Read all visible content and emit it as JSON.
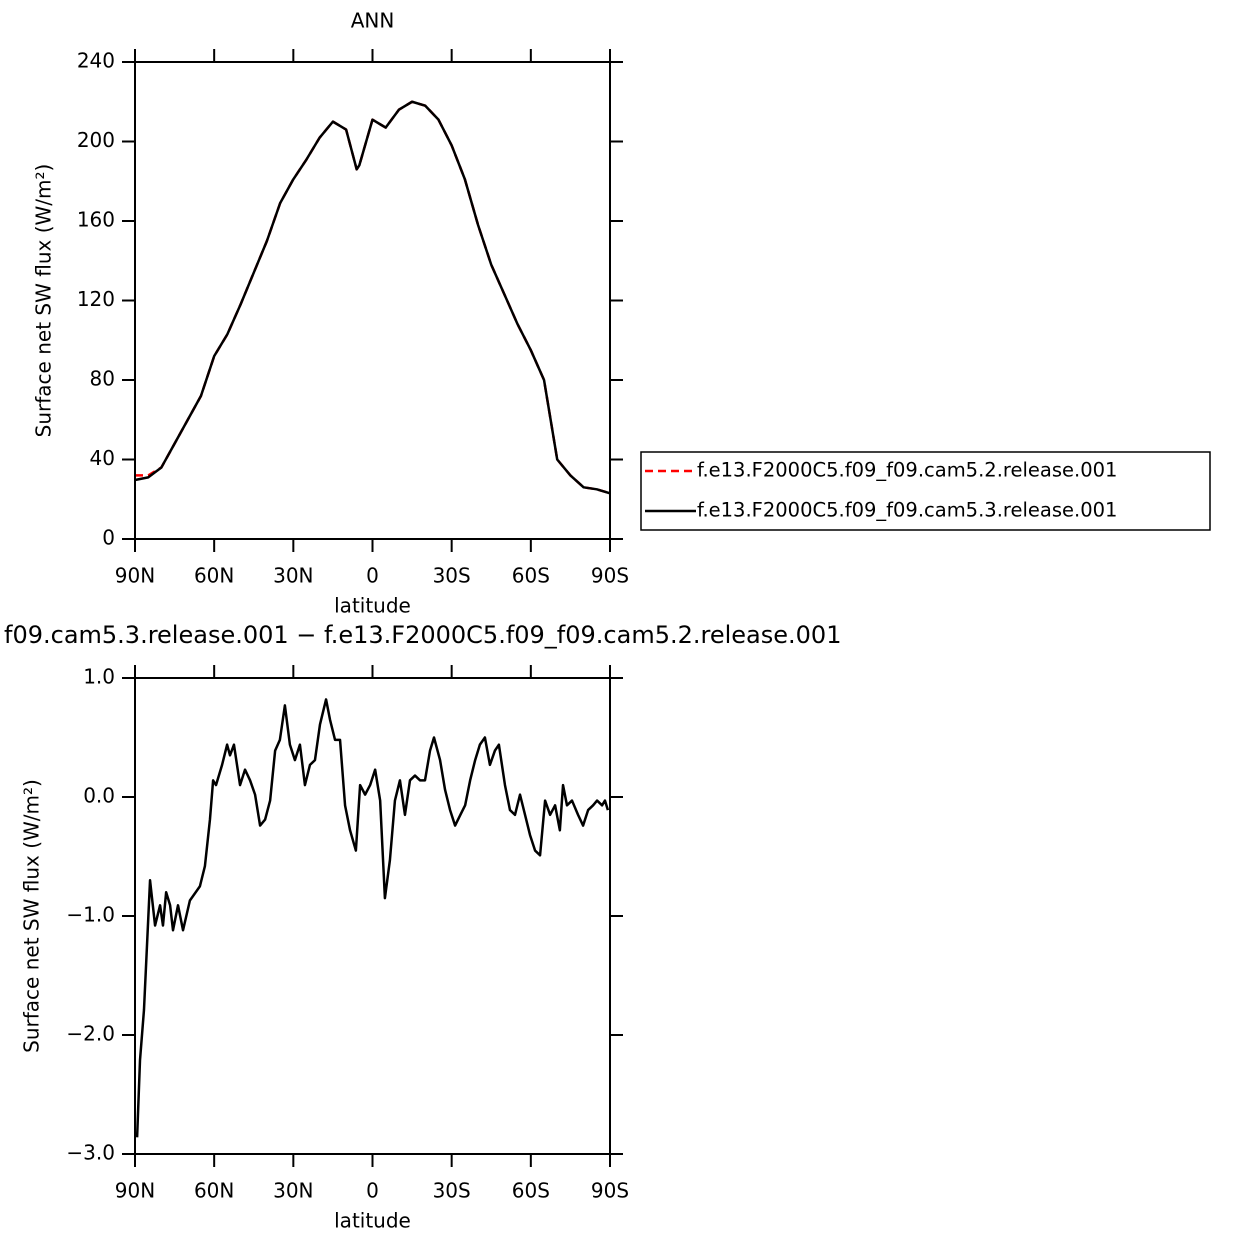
{
  "chart_data": [
    {
      "type": "line",
      "title": "ANN",
      "xlabel": "latitude",
      "ylabel": "Surface net SW flux (W/m²)",
      "x": [
        90,
        85,
        80,
        75,
        70,
        65,
        60,
        55,
        50,
        45,
        40,
        35,
        30,
        25,
        20,
        15,
        10,
        6,
        5,
        0,
        -5,
        -10,
        -15,
        -20,
        -25,
        -30,
        -35,
        -40,
        -45,
        -50,
        -55,
        -60,
        -65,
        -70,
        -75,
        -80,
        -85,
        -90
      ],
      "series": [
        {
          "name": "f.e13.F2000C5.f09_f09.cam5.2.release.001",
          "color": "#ff0000",
          "linestyle": "dashed",
          "values": [
            32,
            32,
            36,
            48,
            60,
            72,
            92,
            103,
            118,
            134,
            150,
            169,
            181,
            191,
            202,
            210,
            206,
            186,
            188,
            211,
            207,
            216,
            220,
            218,
            211,
            198,
            181,
            158,
            138,
            123,
            108,
            95,
            80,
            40,
            32,
            26,
            25,
            23
          ]
        },
        {
          "name": "f.e13.F2000C5.f09_f09.cam5.3.release.001",
          "color": "#000000",
          "linestyle": "solid",
          "values": [
            29.7,
            31,
            36,
            48,
            60,
            72,
            92,
            103,
            118,
            134,
            150,
            169,
            181,
            191,
            202,
            210,
            206,
            186,
            188,
            211,
            207,
            216,
            220,
            218,
            211,
            198,
            181,
            158,
            138,
            123,
            108,
            95,
            80,
            40,
            32,
            26,
            25,
            23
          ]
        }
      ],
      "xlim": [
        90,
        -90
      ],
      "xticks": [
        {
          "value": 90,
          "label": "90N"
        },
        {
          "value": 60,
          "label": "60N"
        },
        {
          "value": 30,
          "label": "30N"
        },
        0,
        {
          "value": -30,
          "label": "30S"
        },
        {
          "value": -60,
          "label": "60S"
        },
        {
          "value": -90,
          "label": "90S"
        }
      ],
      "ylim": [
        0,
        240
      ],
      "yticks": [
        0,
        40,
        80,
        120,
        160,
        200,
        240
      ],
      "legend": "right"
    },
    {
      "type": "line",
      "title": "f09.cam5.3.release.001 − f.e13.F2000C5.f09_f09.cam5.2.release.001",
      "xlabel": "latitude",
      "ylabel": "Surface net SW flux (W/m²)",
      "x": [
        89.2,
        88.1,
        86.6,
        84.3,
        82.4,
        80.5,
        79.4,
        78.2,
        76.7,
        75.6,
        73.7,
        71.8,
        69.2,
        65.4,
        63.5,
        61.6,
        60.4,
        59.3,
        57.0,
        55.1,
        54.0,
        52.5,
        50.2,
        48.3,
        46.4,
        44.5,
        42.6,
        40.7,
        38.8,
        36.9,
        35.1,
        33.2,
        31.3,
        29.4,
        27.5,
        25.6,
        23.7,
        21.8,
        19.9,
        17.6,
        16.1,
        14.2,
        12.3,
        10.4,
        8.5,
        6.3,
        4.7,
        2.8,
        0.9,
        -1.0,
        -2.9,
        -4.7,
        -6.6,
        -8.5,
        -10.4,
        -12.3,
        -14.2,
        -16.1,
        -18.0,
        -19.9,
        -21.8,
        -23.3,
        -25.6,
        -27.5,
        -29.4,
        -31.3,
        -33.3,
        -35.1,
        -37.0,
        -38.9,
        -40.7,
        -42.6,
        -44.5,
        -46.4,
        -47.9,
        -50.2,
        -52.1,
        -54.0,
        -55.9,
        -57.8,
        -59.7,
        -61.6,
        -63.5,
        -65.4,
        -67.3,
        -69.2,
        -71.0,
        -72.2,
        -73.7,
        -75.6,
        -77.9,
        -79.8,
        -81.7,
        -83.6,
        -85.1,
        -87.0,
        -88.1,
        -89.2
      ],
      "series": [
        {
          "color": "#000000",
          "linestyle": "solid",
          "values": [
            -2.86,
            -2.21,
            -1.79,
            -0.7,
            -1.08,
            -0.91,
            -1.08,
            -0.8,
            -0.91,
            -1.12,
            -0.91,
            -1.12,
            -0.87,
            -0.75,
            -0.58,
            -0.19,
            0.14,
            0.1,
            0.27,
            0.44,
            0.35,
            0.44,
            0.1,
            0.23,
            0.14,
            0.02,
            -0.24,
            -0.19,
            -0.03,
            0.39,
            0.48,
            0.77,
            0.44,
            0.31,
            0.44,
            0.1,
            0.27,
            0.31,
            0.61,
            0.82,
            0.65,
            0.48,
            0.48,
            -0.07,
            -0.28,
            -0.45,
            0.1,
            0.02,
            0.1,
            0.23,
            -0.03,
            -0.85,
            -0.53,
            -0.03,
            0.14,
            -0.15,
            0.14,
            0.18,
            0.14,
            0.14,
            0.39,
            0.5,
            0.31,
            0.06,
            -0.11,
            -0.24,
            -0.15,
            -0.07,
            0.14,
            0.31,
            0.44,
            0.5,
            0.27,
            0.39,
            0.44,
            0.1,
            -0.11,
            -0.15,
            0.02,
            -0.15,
            -0.32,
            -0.45,
            -0.49,
            -0.03,
            -0.15,
            -0.07,
            -0.28,
            0.1,
            -0.07,
            -0.03,
            -0.15,
            -0.24,
            -0.11,
            -0.07,
            -0.03,
            -0.07,
            -0.03,
            -0.11
          ]
        }
      ],
      "xlim": [
        90,
        -90
      ],
      "xticks": [
        {
          "value": 90,
          "label": "90N"
        },
        {
          "value": 60,
          "label": "60N"
        },
        {
          "value": 30,
          "label": "30N"
        },
        0,
        {
          "value": -30,
          "label": "30S"
        },
        {
          "value": -60,
          "label": "60S"
        },
        {
          "value": -90,
          "label": "90S"
        }
      ],
      "ylim": [
        -3,
        1
      ],
      "yticks": [
        {
          "value": -3,
          "label": "−3.0"
        },
        {
          "value": -2,
          "label": "−2.0"
        },
        {
          "value": -1,
          "label": "−1.0"
        },
        {
          "value": 0,
          "label": "0.0"
        },
        {
          "value": 1,
          "label": "1.0"
        }
      ]
    }
  ]
}
